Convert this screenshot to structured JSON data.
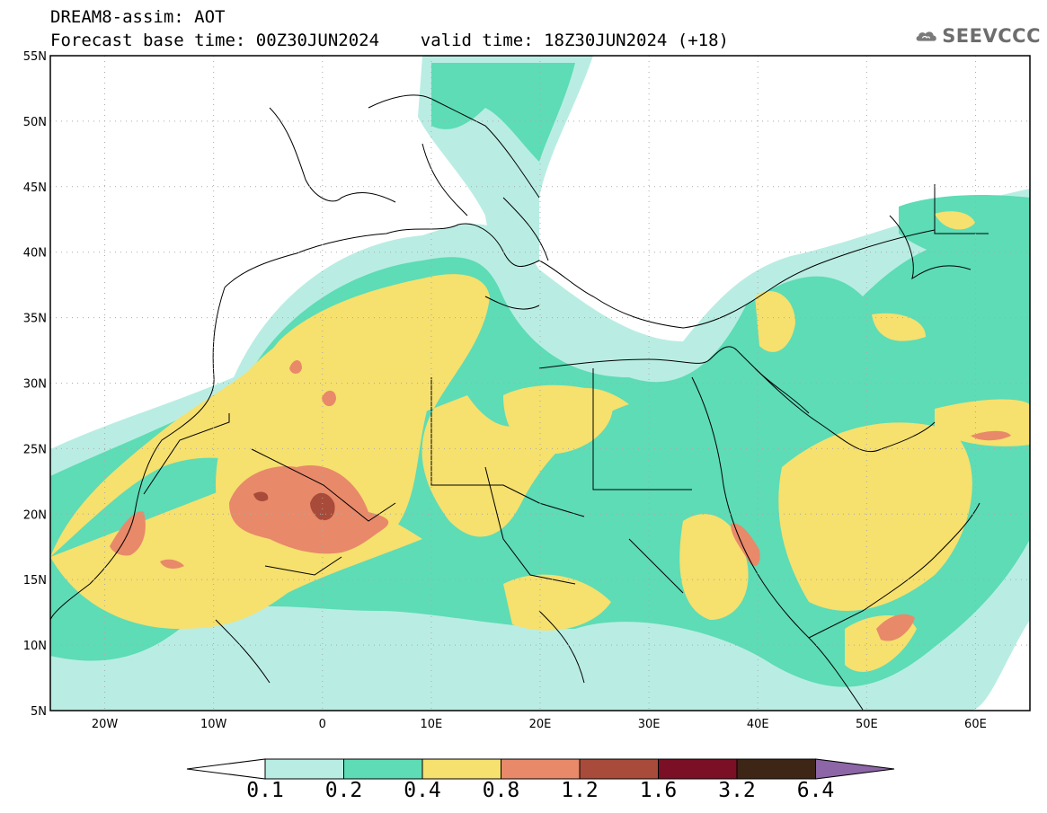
{
  "title": {
    "line1": "DREAM8-assim: AOT",
    "line2": "Forecast base time: 00Z30JUN2024    valid time: 18Z30JUN2024 (+18)"
  },
  "logo": {
    "text": "SEEVCCC",
    "icon": "cloud-icon"
  },
  "map": {
    "lon_range": [
      -25,
      65
    ],
    "lat_range": [
      5,
      55
    ],
    "grid": "dotted",
    "lat_labels": [
      "55N",
      "50N",
      "45N",
      "40N",
      "35N",
      "30N",
      "25N",
      "20N",
      "15N",
      "10N",
      "5N"
    ],
    "lon_labels": [
      "20W",
      "10W",
      "0",
      "10E",
      "20E",
      "30E",
      "40E",
      "50E",
      "60E"
    ]
  },
  "colorbar": {
    "labels": [
      "0.1",
      "0.2",
      "0.4",
      "0.8",
      "1.2",
      "1.6",
      "3.2",
      "6.4"
    ],
    "colors": [
      "#ffffff",
      "#b9ede3",
      "#5ddcb6",
      "#f6e06e",
      "#e8896a",
      "#a84b3a",
      "#7a0f25",
      "#3d2616",
      "#8c66a6"
    ]
  }
}
